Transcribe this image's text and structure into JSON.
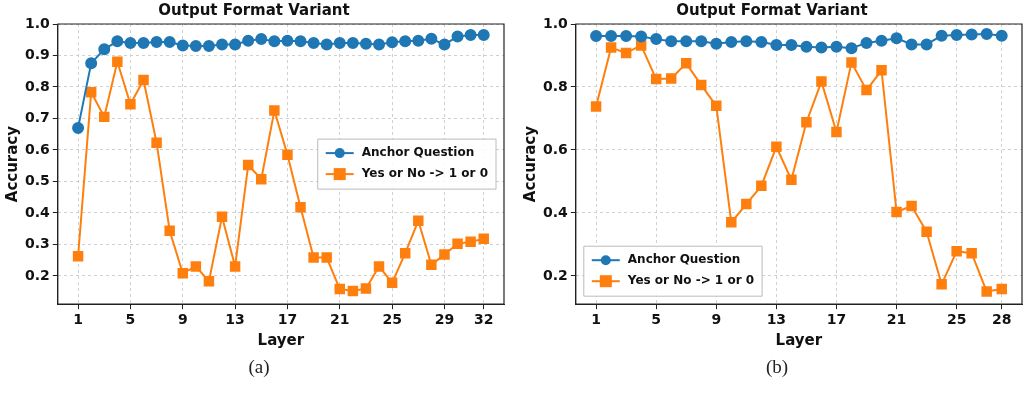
{
  "chart_data": [
    {
      "type": "line",
      "title": "Output Format Variant",
      "xlabel": "Layer",
      "ylabel": "Accuracy",
      "x": [
        1,
        2,
        3,
        4,
        5,
        6,
        7,
        8,
        9,
        10,
        11,
        12,
        13,
        14,
        15,
        16,
        17,
        18,
        19,
        20,
        21,
        22,
        23,
        24,
        25,
        26,
        27,
        28,
        29,
        30,
        31,
        32
      ],
      "xlim": [
        -0.55,
        33.55
      ],
      "xticks": [
        1,
        5,
        9,
        13,
        17,
        21,
        25,
        29,
        32
      ],
      "ylim": [
        0.11,
        1.0
      ],
      "yticks": [
        {
          "value": 0.2,
          "label": "0.2"
        },
        {
          "value": 0.3,
          "label": "0.3"
        },
        {
          "value": 0.4,
          "label": "0.4"
        },
        {
          "value": 0.5,
          "label": "0.5"
        },
        {
          "value": 0.6,
          "label": "0.6"
        },
        {
          "value": 0.7,
          "label": "0.7"
        },
        {
          "value": 0.8,
          "label": "0.8"
        },
        {
          "value": 0.9,
          "label": "0.9"
        },
        {
          "value": 1.0,
          "label": "1.0"
        }
      ],
      "grid": true,
      "legend": "right",
      "annotations": [
        "(a)"
      ],
      "series": [
        {
          "name": "Anchor Question",
          "color": "#1f77b4",
          "marker": "circle",
          "values": [
            0.67,
            0.875,
            0.92,
            0.945,
            0.94,
            0.94,
            0.943,
            0.943,
            0.932,
            0.93,
            0.93,
            0.935,
            0.935,
            0.947,
            0.952,
            0.945,
            0.947,
            0.945,
            0.94,
            0.935,
            0.94,
            0.94,
            0.937,
            0.935,
            0.942,
            0.945,
            0.947,
            0.953,
            0.935,
            0.96,
            0.965,
            0.965
          ]
        },
        {
          "name": "Yes or No -> 1 or 0",
          "color": "#ff7f0e",
          "marker": "square",
          "values": [
            0.262,
            0.783,
            0.705,
            0.88,
            0.745,
            0.822,
            0.623,
            0.343,
            0.208,
            0.23,
            0.183,
            0.388,
            0.23,
            0.552,
            0.507,
            0.725,
            0.585,
            0.418,
            0.258,
            0.258,
            0.158,
            0.152,
            0.16,
            0.23,
            0.178,
            0.272,
            0.375,
            0.235,
            0.268,
            0.302,
            0.308,
            0.318
          ]
        }
      ]
    },
    {
      "type": "line",
      "title": "Output Format Variant",
      "xlabel": "Layer",
      "ylabel": "Accuracy",
      "x": [
        1,
        2,
        3,
        4,
        5,
        6,
        7,
        8,
        9,
        10,
        11,
        12,
        13,
        14,
        15,
        16,
        17,
        18,
        19,
        20,
        21,
        22,
        23,
        24,
        25,
        26,
        27,
        28
      ],
      "xlim": [
        -0.35,
        29.35
      ],
      "xticks": [
        1,
        5,
        9,
        13,
        17,
        21,
        25,
        28
      ],
      "ylim": [
        0.11,
        1.0
      ],
      "yticks": [
        {
          "value": 0.2,
          "label": "0.2"
        },
        {
          "value": 0.4,
          "label": "0.4"
        },
        {
          "value": 0.6,
          "label": "0.6"
        },
        {
          "value": 0.8,
          "label": "0.8"
        },
        {
          "value": 1.0,
          "label": "1.0"
        }
      ],
      "grid": true,
      "legend": "bottom left",
      "annotations": [
        "(b)"
      ],
      "series": [
        {
          "name": "Anchor Question",
          "color": "#1f77b4",
          "marker": "circle",
          "values": [
            0.962,
            0.962,
            0.962,
            0.96,
            0.952,
            0.945,
            0.945,
            0.945,
            0.937,
            0.943,
            0.945,
            0.943,
            0.933,
            0.933,
            0.928,
            0.925,
            0.928,
            0.923,
            0.94,
            0.947,
            0.955,
            0.935,
            0.935,
            0.963,
            0.965,
            0.967,
            0.968,
            0.963
          ]
        },
        {
          "name": "Yes or No -> 1 or 0",
          "color": "#ff7f0e",
          "marker": "square",
          "values": [
            0.738,
            0.925,
            0.908,
            0.932,
            0.825,
            0.827,
            0.875,
            0.806,
            0.74,
            0.37,
            0.428,
            0.486,
            0.61,
            0.505,
            0.688,
            0.817,
            0.657,
            0.878,
            0.79,
            0.853,
            0.403,
            0.422,
            0.34,
            0.173,
            0.278,
            0.272,
            0.15,
            0.158
          ]
        }
      ]
    }
  ]
}
